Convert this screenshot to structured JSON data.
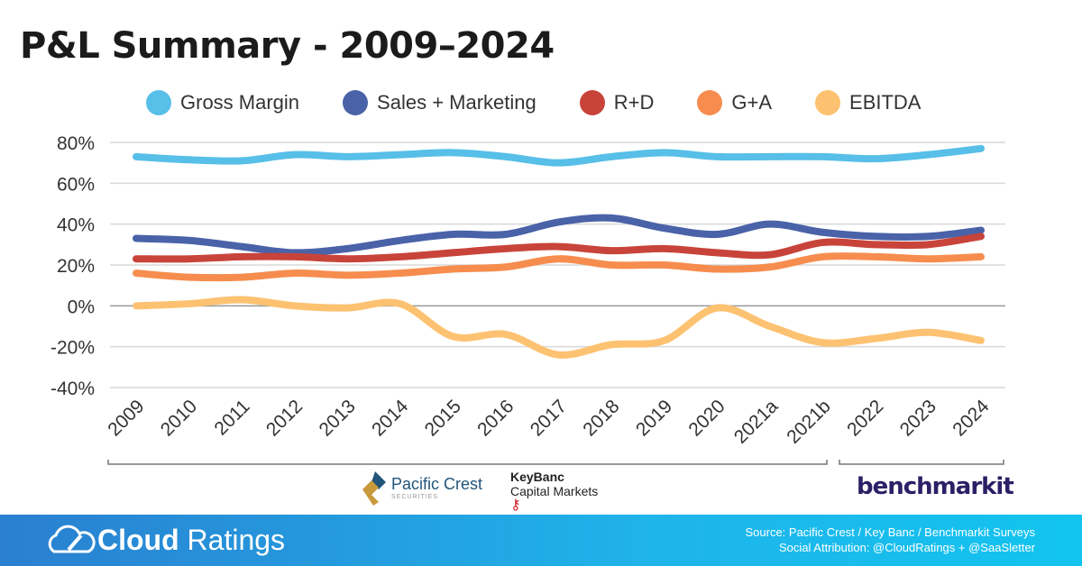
{
  "chart_data": {
    "type": "line",
    "title": "P&L Summary - 2009–2024",
    "categories": [
      "2009",
      "2010",
      "2011",
      "2012",
      "2013",
      "2014",
      "2015",
      "2016",
      "2017",
      "2018",
      "2019",
      "2020",
      "2021a",
      "2021b",
      "2022",
      "2023",
      "2024"
    ],
    "yticks": [
      "80%",
      "60%",
      "40%",
      "20%",
      "0%",
      "-20%",
      "-40%"
    ],
    "ylim": [
      -40,
      80
    ],
    "legend_position": "top",
    "series": [
      {
        "name": "Gross Margin",
        "color": "#57bfe8",
        "values": [
          73,
          71.5,
          71,
          74,
          73,
          74,
          75,
          73,
          70,
          73,
          75,
          73,
          73,
          73,
          72,
          74,
          77
        ]
      },
      {
        "name": "Sales + Marketing",
        "color": "#4a62a8",
        "values": [
          33,
          32,
          29,
          26,
          28,
          32,
          35,
          35,
          41,
          43,
          38,
          35,
          40,
          36,
          34,
          34,
          37
        ]
      },
      {
        "name": "R+D",
        "color": "#c8443a",
        "values": [
          23,
          23,
          24,
          24,
          23,
          24,
          26,
          28,
          29,
          27,
          28,
          26,
          25,
          31,
          30,
          30,
          34
        ]
      },
      {
        "name": "G+A",
        "color": "#f68d4e",
        "values": [
          16,
          14,
          14,
          16,
          15,
          16,
          18,
          19,
          23,
          20,
          20,
          18,
          19,
          24,
          24,
          23,
          24
        ]
      },
      {
        "name": "EBITDA",
        "color": "#fdc271",
        "values": [
          0,
          1,
          3,
          0,
          -1,
          1,
          -15,
          -14,
          -24,
          -19,
          -17,
          -1,
          -10,
          -18,
          -16,
          -13,
          -17
        ]
      }
    ]
  },
  "sources": {
    "pacific_crest": "Pacific Crest",
    "pacific_crest_sub": "SECURITIES",
    "keybanc": "KeyBanc",
    "keybanc_sub": "Capital Markets",
    "benchmarkit": "benchmarkit"
  },
  "footer": {
    "brand_bold": "Cloud",
    "brand_light": "Ratings",
    "source": "Source: Pacific Crest / Key Banc / Benchmarkit Surveys",
    "attribution": "Social Attribution: @CloudRatings + @SaaSletter"
  }
}
